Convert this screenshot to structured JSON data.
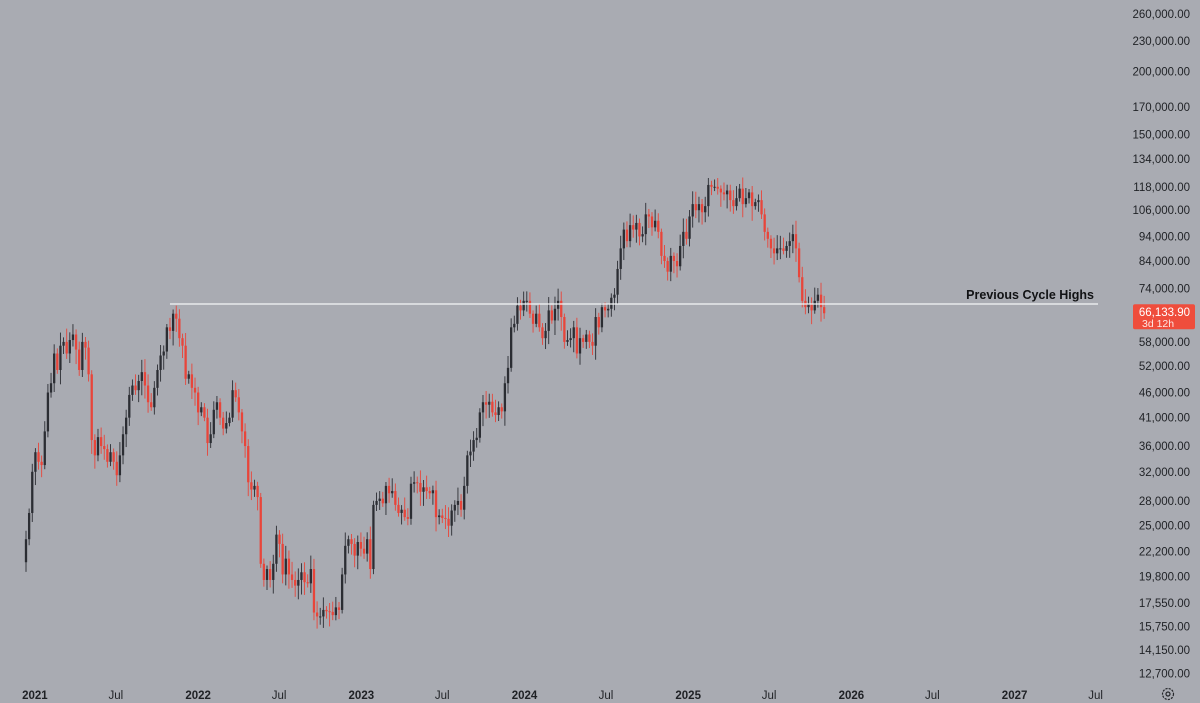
{
  "chart_data": {
    "type": "candlestick",
    "symbol_timeframe": "weekly",
    "y_scale": "log",
    "ylim": [
      12000,
      275000
    ],
    "y_ticks": [
      "260,000.00",
      "230,000.00",
      "200,000.00",
      "170,000.00",
      "150,000.00",
      "134,000.00",
      "118,000.00",
      "106,000.00",
      "94,000.00",
      "84,000.00",
      "74,000.00",
      "66,133.90",
      "58,000.00",
      "52,000.00",
      "46,000.00",
      "41,000.00",
      "36,000.00",
      "32,000.00",
      "28,000.00",
      "25,000.00",
      "22,200.00",
      "19,800.00",
      "17,550.00",
      "15,750.00",
      "14,150.00",
      "12,700.00"
    ],
    "x_ticks": [
      {
        "label": "2021",
        "date": "2021-01-01",
        "bold": true
      },
      {
        "label": "Jul",
        "date": "2021-07-01",
        "bold": false
      },
      {
        "label": "2022",
        "date": "2022-01-01",
        "bold": true
      },
      {
        "label": "Jul",
        "date": "2022-07-01",
        "bold": false
      },
      {
        "label": "2023",
        "date": "2023-01-01",
        "bold": true
      },
      {
        "label": "Jul",
        "date": "2023-07-01",
        "bold": false
      },
      {
        "label": "2024",
        "date": "2024-01-01",
        "bold": true
      },
      {
        "label": "Jul",
        "date": "2024-07-01",
        "bold": false
      },
      {
        "label": "2025",
        "date": "2025-01-01",
        "bold": true
      },
      {
        "label": "Jul",
        "date": "2025-07-01",
        "bold": false
      },
      {
        "label": "2026",
        "date": "2026-01-01",
        "bold": true
      },
      {
        "label": "Jul",
        "date": "2026-07-01",
        "bold": false
      },
      {
        "label": "2027",
        "date": "2027-01-01",
        "bold": true
      },
      {
        "label": "Jul",
        "date": "2027-07-01",
        "bold": false
      }
    ],
    "annotation": {
      "label": "Previous Cycle Highs",
      "level": 69000,
      "from_date": "2021-11-08"
    },
    "last_price": {
      "value": 66133.9,
      "label": "66,133.90",
      "countdown": "3d 12h"
    },
    "candles_start_date": "2020-12-21",
    "candles_interval": "1 week",
    "closes": [
      23500,
      26500,
      32000,
      35000,
      33500,
      33000,
      38500,
      46000,
      48000,
      55000,
      51000,
      57000,
      58000,
      55000,
      58500,
      60000,
      56000,
      51000,
      58000,
      56500,
      50000,
      37000,
      34500,
      37500,
      36000,
      35500,
      33500,
      35000,
      33500,
      31500,
      34500,
      38000,
      41000,
      45500,
      47500,
      46500,
      48500,
      50500,
      47500,
      44000,
      43000,
      47000,
      51000,
      54500,
      55500,
      62000,
      61000,
      66000,
      64500,
      59000,
      57000,
      49000,
      50000,
      47000,
      46000,
      42000,
      43000,
      41000,
      36500,
      38000,
      42500,
      44000,
      41000,
      39000,
      40000,
      41000,
      46500,
      45000,
      42000,
      38500,
      36000,
      30500,
      29500,
      30000,
      28500,
      21000,
      19500,
      20500,
      19500,
      21000,
      24000,
      23000,
      20000,
      21500,
      20000,
      19500,
      19000,
      19500,
      20200,
      19300,
      19200,
      20500,
      16800,
      16500,
      16500,
      17000,
      16900,
      16850,
      16600,
      17200,
      17000,
      20000,
      22800,
      23500,
      23000,
      21800,
      23200,
      22500,
      22000,
      23500,
      20500,
      27500,
      28000,
      28300,
      27700,
      30000,
      29000,
      29300,
      27500,
      26500,
      26900,
      26000,
      25800,
      30300,
      30500,
      30400,
      29200,
      29800,
      29300,
      29000,
      29400,
      26000,
      26200,
      25900,
      25800,
      25000,
      26800,
      27500,
      28000,
      26900,
      30000,
      34500,
      35100,
      37000,
      37400,
      42000,
      44000,
      43500,
      44100,
      42000,
      41500,
      43000,
      42200,
      48000,
      51500,
      62000,
      63000,
      68500,
      67000,
      70000,
      70000,
      66000,
      63000,
      66000,
      62000,
      59000,
      61000,
      67000,
      64000,
      67500,
      70000,
      65000,
      58000,
      58500,
      59000,
      62000,
      55000,
      59000,
      58000,
      60000,
      58000,
      57000,
      65000,
      62000,
      68000,
      67000,
      67500,
      71000,
      72000,
      81000,
      89000,
      97000,
      92000,
      99000,
      97000,
      100000,
      94000,
      95000,
      104000,
      103000,
      98000,
      101000,
      96000,
      86000,
      84000,
      80000,
      86000,
      84000,
      82000,
      90000,
      96000,
      93000,
      103000,
      109000,
      106000,
      109000,
      105000,
      108000,
      119000,
      118000,
      118000,
      117000,
      115000,
      114000,
      116000,
      111000,
      108000,
      112000,
      117000,
      109000,
      112000,
      115000,
      108000,
      110000,
      111000,
      104000,
      96000,
      93000,
      89000,
      87000,
      89000,
      89000,
      88000,
      90000,
      92000,
      95000,
      89000,
      78000,
      70000,
      68000,
      69000,
      67000,
      70000,
      72000,
      68000,
      66133.9
    ]
  }
}
